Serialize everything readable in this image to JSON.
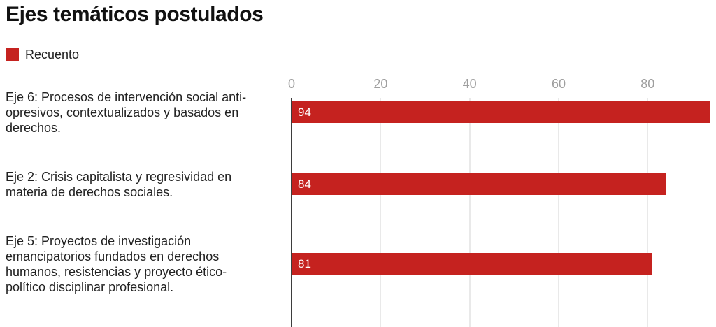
{
  "title": "Ejes temáticos postulados",
  "legend": {
    "label": "Recuento",
    "color": "#C5221F"
  },
  "chart_data": {
    "type": "bar",
    "orientation": "horizontal",
    "title": "Ejes temáticos postulados",
    "legend_entries": [
      "Recuento"
    ],
    "categories": [
      "Eje 6: Procesos de intervención social anti-\nopresivos, contextualizados y basados en\nderechos.",
      "Eje 2: Crisis capitalista y regresividad en\nmateria de derechos sociales.",
      "Eje 5: Proyectos de investigación\nemancipatorios fundados en derechos\nhumanos, resistencias y proyecto ético-\npolítico disciplinar profesional."
    ],
    "values": [
      94,
      84,
      81
    ],
    "value_labels": [
      "94",
      "84",
      "81"
    ],
    "xlabel": "",
    "ylabel": "",
    "xlim": [
      0,
      95
    ],
    "xticks": [
      0,
      20,
      40,
      60,
      80
    ],
    "grid": true,
    "bar_color": "#C5221F",
    "axis_color": "#3d3d3d",
    "gridline_color": "#e9e9e9",
    "tick_text_color": "#9e9e9e",
    "bar_value_text_color": "#ffffff"
  }
}
